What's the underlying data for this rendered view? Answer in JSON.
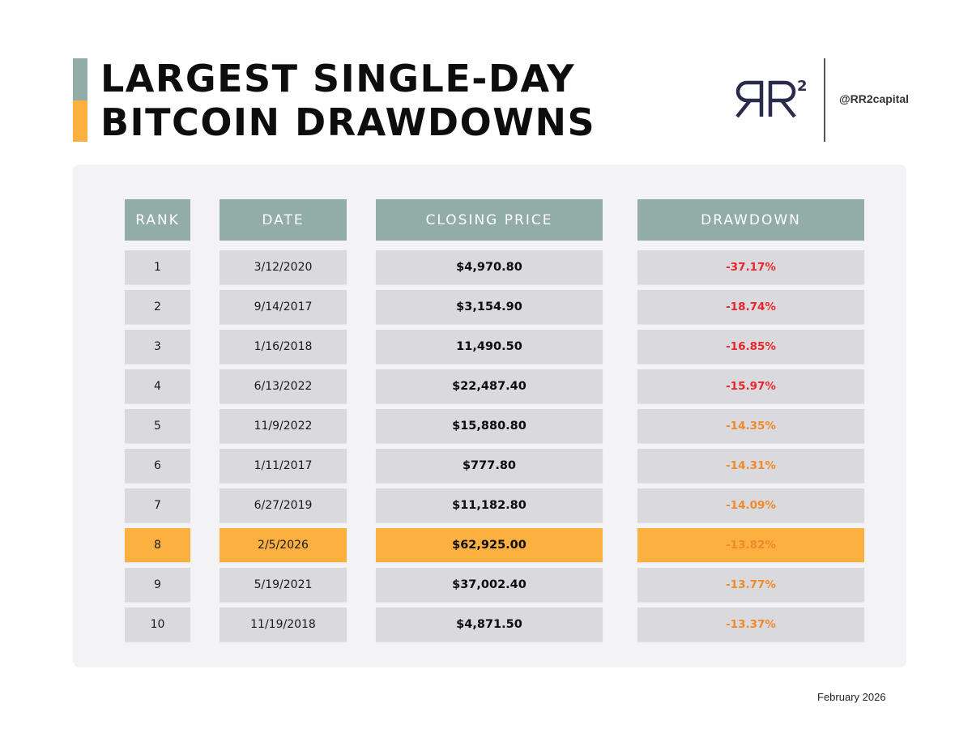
{
  "title": {
    "line1": "LARGEST SINGLE-DAY",
    "line2": "BITCOIN DRAWDOWNS"
  },
  "brand": {
    "logo_text": "RR2",
    "handle": "@RR2capital"
  },
  "colors": {
    "accent_teal": "#92ADA8",
    "accent_orange": "#FBB040",
    "header_bg": "#92ADA8",
    "cell_bg": "#D9D9DE",
    "highlight_bg": "#FBB040",
    "red": "#E8262A",
    "orange": "#F0892A",
    "logo": "#2A2A4A"
  },
  "table": {
    "headers": [
      "RANK",
      "DATE",
      "CLOSING PRICE",
      "DRAWDOWN"
    ],
    "rows": [
      {
        "rank": "1",
        "date": "3/12/2020",
        "price": "$4,970.80",
        "drawdown": "-37.17%",
        "tone": "red",
        "highlight": false
      },
      {
        "rank": "2",
        "date": "9/14/2017",
        "price": "$3,154.90",
        "drawdown": "-18.74%",
        "tone": "red",
        "highlight": false
      },
      {
        "rank": "3",
        "date": "1/16/2018",
        "price": "11,490.50",
        "drawdown": "-16.85%",
        "tone": "red",
        "highlight": false
      },
      {
        "rank": "4",
        "date": "6/13/2022",
        "price": "$22,487.40",
        "drawdown": "-15.97%",
        "tone": "red",
        "highlight": false
      },
      {
        "rank": "5",
        "date": "11/9/2022",
        "price": "$15,880.80",
        "drawdown": "-14.35%",
        "tone": "orange",
        "highlight": false
      },
      {
        "rank": "6",
        "date": "1/11/2017",
        "price": "$777.80",
        "drawdown": "-14.31%",
        "tone": "orange",
        "highlight": false
      },
      {
        "rank": "7",
        "date": "6/27/2019",
        "price": "$11,182.80",
        "drawdown": "-14.09%",
        "tone": "orange",
        "highlight": false
      },
      {
        "rank": "8",
        "date": "2/5/2026",
        "price": "$62,925.00",
        "drawdown": "-13.82%",
        "tone": "orange",
        "highlight": true
      },
      {
        "rank": "9",
        "date": "5/19/2021",
        "price": "$37,002.40",
        "drawdown": "-13.77%",
        "tone": "orange",
        "highlight": false
      },
      {
        "rank": "10",
        "date": "11/19/2018",
        "price": "$4,871.50",
        "drawdown": "-13.37%",
        "tone": "orange",
        "highlight": false
      }
    ]
  },
  "footer": {
    "date": "February 2026"
  }
}
